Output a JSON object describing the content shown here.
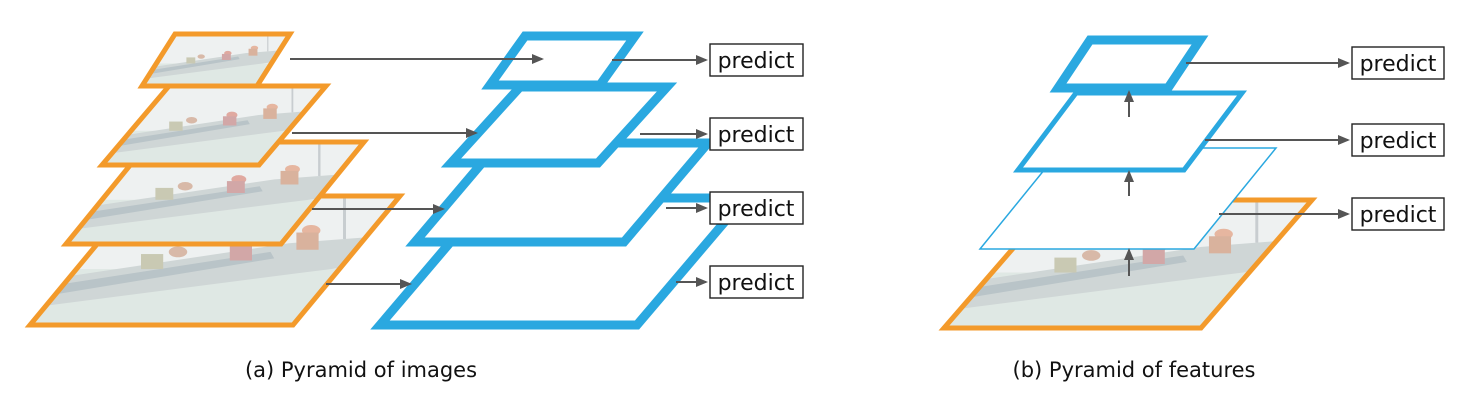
{
  "colors": {
    "image_border": "#f39a2b",
    "feature_border": "#2aa8e0",
    "arrow": "#555555",
    "photo_sky": "#eef1f1",
    "photo_sea": "#d9e4e0",
    "photo_hull": "#cfd6d6"
  },
  "panel_a": {
    "caption": "(a) Pyramid of images",
    "predict_labels": [
      "predict",
      "predict",
      "predict",
      "predict"
    ]
  },
  "panel_b": {
    "caption": "(b) Pyramid of features",
    "predict_labels": [
      "predict",
      "predict",
      "predict"
    ]
  }
}
